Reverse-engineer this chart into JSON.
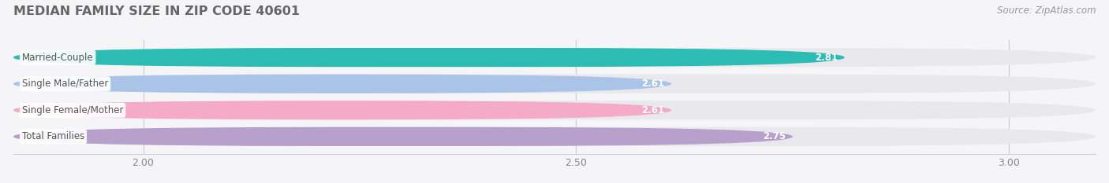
{
  "title": "MEDIAN FAMILY SIZE IN ZIP CODE 40601",
  "source_text": "Source: ZipAtlas.com",
  "categories": [
    "Married-Couple",
    "Single Male/Father",
    "Single Female/Mother",
    "Total Families"
  ],
  "values": [
    2.81,
    2.61,
    2.61,
    2.75
  ],
  "bar_colors": [
    "#2bbcb4",
    "#aac4e8",
    "#f5aac8",
    "#b8a0cc"
  ],
  "bar_bg_color": "#e8e8ed",
  "xlim": [
    1.85,
    3.1
  ],
  "xticks": [
    2.0,
    2.5,
    3.0
  ],
  "title_color": "#666666",
  "title_fontsize": 11.5,
  "value_fontsize": 8.5,
  "source_fontsize": 8.5,
  "source_color": "#999999",
  "category_fontsize": 8.5,
  "bar_height": 0.72,
  "bg_color": "#f5f5f7"
}
